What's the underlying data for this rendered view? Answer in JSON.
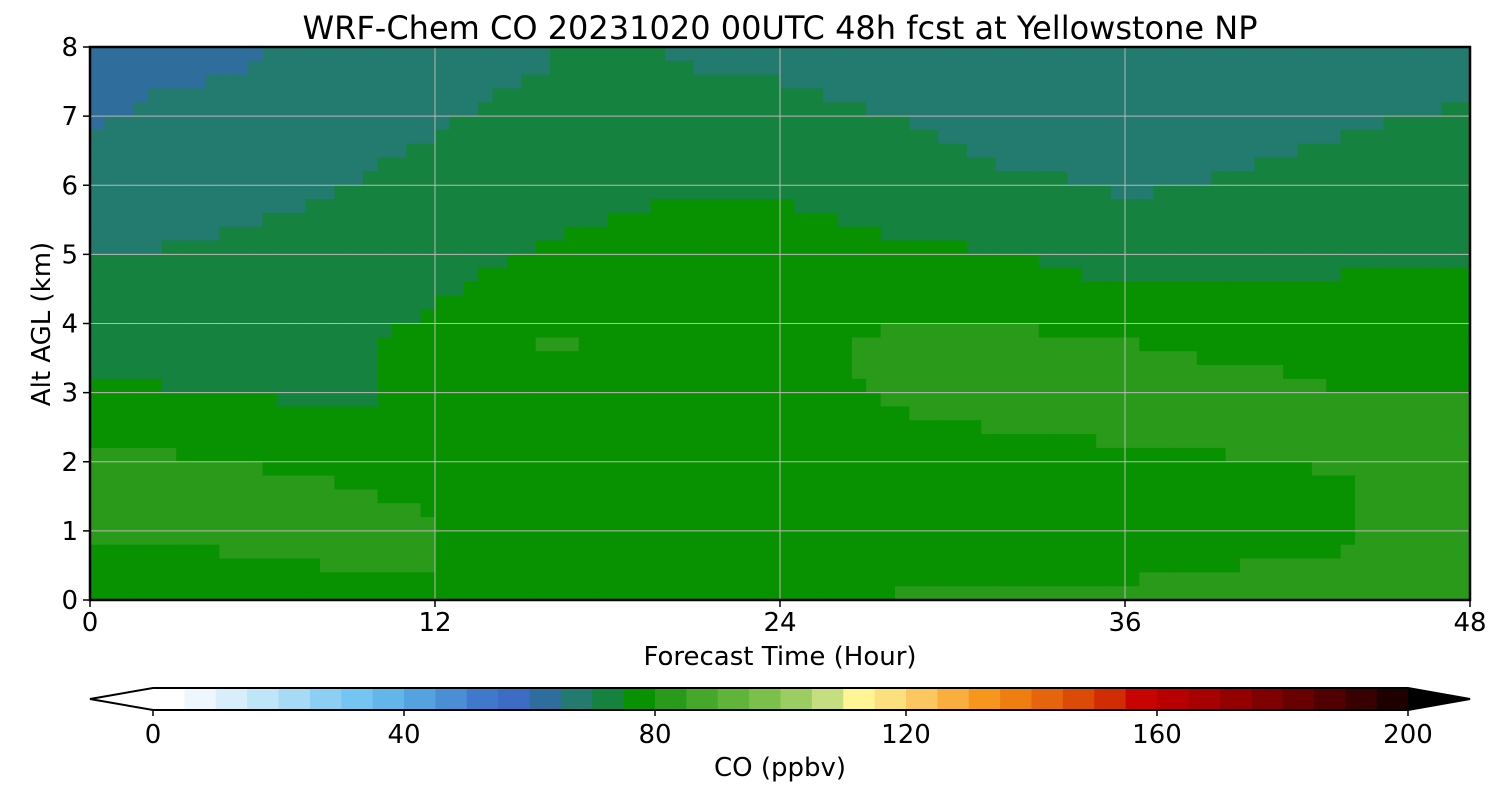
{
  "chart_data": {
    "type": "heatmap",
    "title": "WRF-Chem CO  20231020 00UTC 48h fcst at Yellowstone NP",
    "xlabel": "Forecast Time (Hour)",
    "ylabel": "Alt AGL (km)",
    "xlim": [
      0,
      48
    ],
    "ylim": [
      0,
      8
    ],
    "xticks": [
      0,
      12,
      24,
      36,
      48
    ],
    "yticks": [
      0,
      1,
      2,
      3,
      4,
      5,
      6,
      7,
      8
    ],
    "grid": true,
    "x": [
      0,
      4,
      8,
      12,
      16,
      20,
      24,
      28,
      32,
      36,
      40,
      44,
      48
    ],
    "y": [
      0.25,
      0.75,
      1.25,
      1.75,
      2.25,
      2.75,
      3.25,
      3.75,
      4.25,
      4.75,
      5.25,
      5.75,
      6.25,
      6.75,
      7.25,
      7.75
    ],
    "z": [
      [
        79,
        79,
        79,
        80,
        79,
        79,
        79,
        80,
        80,
        80,
        81,
        81,
        81
      ],
      [
        80,
        80,
        81,
        80,
        79,
        78,
        78,
        79,
        79,
        79,
        79,
        80,
        81
      ],
      [
        83,
        82,
        82,
        80,
        78,
        76,
        76,
        77,
        77,
        77,
        78,
        80,
        81
      ],
      [
        84,
        83,
        80,
        78,
        76,
        75,
        75,
        76,
        77,
        77,
        78,
        80,
        82
      ],
      [
        80,
        78,
        76,
        75,
        75,
        75,
        76,
        77,
        79,
        80,
        81,
        82,
        83
      ],
      [
        77,
        76,
        75,
        75,
        76,
        77,
        78,
        80,
        82,
        82,
        82,
        81,
        81
      ],
      [
        75,
        74,
        74,
        76,
        79,
        78,
        78,
        81,
        82,
        82,
        81,
        79,
        79
      ],
      [
        74,
        73,
        74,
        76,
        81,
        78,
        78,
        81,
        81,
        80,
        78,
        77,
        77
      ],
      [
        73,
        72,
        73,
        75,
        78,
        78,
        78,
        79,
        79,
        77,
        76,
        76,
        76
      ],
      [
        71,
        71,
        72,
        74,
        76,
        77,
        77,
        77,
        76,
        74,
        74,
        75,
        75
      ],
      [
        69,
        70,
        71,
        73,
        75,
        76,
        76,
        75,
        74,
        72,
        72,
        73,
        74
      ],
      [
        68,
        69,
        70,
        72,
        74,
        75,
        75,
        74,
        72,
        70,
        71,
        72,
        73
      ],
      [
        66,
        68,
        69,
        71,
        73,
        74,
        74,
        73,
        70,
        69,
        70,
        71,
        72
      ],
      [
        65,
        67,
        68,
        70,
        72,
        73,
        73,
        71,
        68,
        68,
        69,
        70,
        71
      ],
      [
        64,
        66,
        67,
        69,
        71,
        72,
        71,
        69,
        67,
        67,
        68,
        69,
        70
      ],
      [
        64,
        64,
        66,
        68,
        70,
        70,
        69,
        67,
        66,
        67,
        68,
        68,
        69
      ]
    ],
    "colorbar": {
      "label": "CO  (ppbv)",
      "min": 0,
      "max": 200,
      "step": 5,
      "extend": "both",
      "ticks": [
        0,
        40,
        80,
        120,
        160,
        200
      ],
      "colors": [
        "#ffffff",
        "#eef7fd",
        "#d8effb",
        "#bfe5f8",
        "#a7dbf5",
        "#8dcff3",
        "#74c5f1",
        "#62b6ea",
        "#54a3e0",
        "#4a8fd6",
        "#4078cc",
        "#3c6cc4",
        "#2f6e9c",
        "#237a6e",
        "#15823f",
        "#089100",
        "#2a9a1a",
        "#45a82a",
        "#60b43a",
        "#7cc04c",
        "#9ccd62",
        "#c4de80",
        "#fff594",
        "#fde07e",
        "#fbc75e",
        "#f9ae3e",
        "#f6961c",
        "#ee7e10",
        "#e6640c",
        "#dc4a08",
        "#d22c04",
        "#c80400",
        "#b80000",
        "#a80000",
        "#940000",
        "#7e0000",
        "#680000",
        "#500000",
        "#380000",
        "#1e0000"
      ],
      "under_color": "#ffffff",
      "over_color": "#000000"
    }
  }
}
